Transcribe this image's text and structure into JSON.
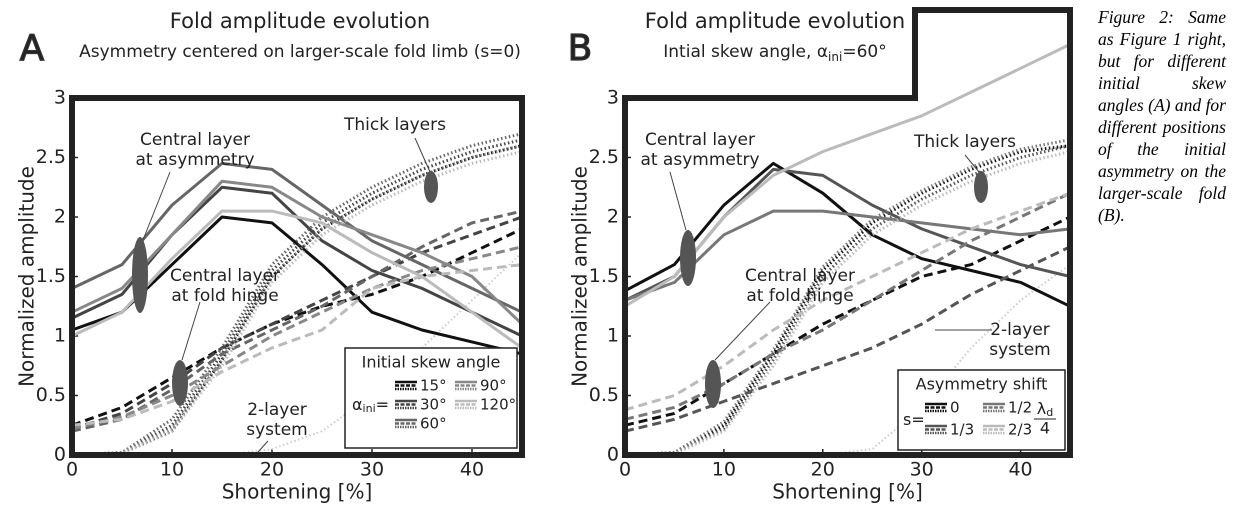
{
  "chart_data": [
    {
      "type": "line",
      "panel": "A",
      "title": "Fold amplitude evolution",
      "subtitle": {
        "text": "Asymmetry centered on larger-scale fold limb (s=0)"
      },
      "xlabel": "Shortening [%]",
      "ylabel": "Normalized amplitude",
      "x": [
        0,
        5,
        10,
        15,
        20,
        25,
        30,
        35,
        40,
        45
      ],
      "xlim": [
        0,
        45
      ],
      "ylim": [
        0,
        3
      ],
      "xticks": [
        0,
        10,
        20,
        30,
        40
      ],
      "yticks": [
        0,
        0.5,
        1,
        1.5,
        2,
        2.5,
        3
      ],
      "legend": {
        "title": "Initial skew angle",
        "symbol": "α",
        "sub": "ini",
        "eq": "="
      },
      "series": [
        {
          "name": "15°",
          "color": "#111111",
          "lines": {
            "solid": [
              1.05,
              1.2,
              1.6,
              2.0,
              1.95,
              1.6,
              1.2,
              1.05,
              0.95,
              0.85
            ],
            "dashed": [
              0.25,
              0.4,
              0.65,
              0.9,
              1.1,
              1.25,
              1.35,
              1.5,
              1.7,
              1.9
            ],
            "dotted": [
              0,
              0.02,
              0.2,
              0.8,
              1.5,
              1.9,
              2.15,
              2.35,
              2.5,
              2.6
            ]
          }
        },
        {
          "name": "30°",
          "color": "#444444",
          "lines": {
            "solid": [
              1.15,
              1.35,
              1.85,
              2.25,
              2.2,
              1.8,
              1.55,
              1.4,
              1.2,
              1.0
            ],
            "dashed": [
              0.22,
              0.35,
              0.6,
              0.9,
              1.1,
              1.3,
              1.5,
              1.7,
              1.85,
              2.0
            ],
            "dotted": [
              0,
              0.02,
              0.25,
              0.85,
              1.55,
              1.95,
              2.2,
              2.4,
              2.55,
              2.65
            ]
          }
        },
        {
          "name": "60°",
          "color": "#666666",
          "lines": {
            "solid": [
              1.4,
              1.6,
              2.1,
              2.45,
              2.4,
              2.1,
              1.8,
              1.6,
              1.4,
              1.2
            ],
            "dashed": [
              0.2,
              0.3,
              0.55,
              0.85,
              1.05,
              1.25,
              1.5,
              1.75,
              1.95,
              2.05
            ],
            "dotted": [
              0,
              0.02,
              0.3,
              0.9,
              1.6,
              2.0,
              2.25,
              2.45,
              2.6,
              2.7
            ]
          }
        },
        {
          "name": "90°",
          "color": "#888888",
          "lines": {
            "solid": [
              1.2,
              1.4,
              1.85,
              2.3,
              2.25,
              2.0,
              1.85,
              1.7,
              1.5,
              1.1
            ],
            "dashed": [
              0.22,
              0.32,
              0.5,
              0.75,
              1.0,
              1.2,
              1.4,
              1.55,
              1.65,
              1.75
            ],
            "dotted": [
              0,
              0.02,
              0.22,
              0.8,
              1.5,
              1.9,
              2.15,
              2.35,
              2.5,
              2.6
            ]
          }
        },
        {
          "name": "120°",
          "color": "#bbbbbb",
          "lines": {
            "solid": [
              1.0,
              1.2,
              1.65,
              2.05,
              2.05,
              1.95,
              1.7,
              1.5,
              1.2,
              0.9
            ],
            "dashed": [
              0.25,
              0.3,
              0.45,
              0.7,
              0.9,
              1.05,
              1.4,
              1.5,
              1.55,
              1.6
            ],
            "dotted": [
              0,
              0.01,
              0.2,
              0.75,
              1.45,
              1.85,
              2.1,
              2.3,
              2.45,
              2.55
            ]
          }
        }
      ],
      "two_layer": {
        "color": "#cccccc",
        "values": [
          0,
          0,
          0,
          0,
          0.05,
          0.2,
          0.5,
          0.9,
          1.3,
          1.7
        ]
      },
      "annotations": [
        {
          "lines": [
            "Central layer",
            "at asymmetry"
          ]
        },
        {
          "lines": [
            "Thick layers"
          ]
        },
        {
          "lines": [
            "Central layer",
            "at fold hinge"
          ]
        },
        {
          "lines": [
            "2-layer",
            "system"
          ]
        }
      ]
    },
    {
      "type": "line",
      "panel": "B",
      "title": "Fold amplitude evolution",
      "subtitle": {
        "text": "Intial skew angle, ",
        "symbol": "α",
        "sub": "ini",
        "rest": "=60°"
      },
      "xlabel": "Shortening [%]",
      "ylabel": "Normalized amplitude",
      "x": [
        0,
        5,
        10,
        15,
        20,
        25,
        30,
        35,
        40,
        45
      ],
      "xlim": [
        0,
        45
      ],
      "ylim": [
        0,
        3
      ],
      "xticks": [
        0,
        10,
        20,
        30,
        40
      ],
      "yticks": [
        0,
        0.5,
        1,
        1.5,
        2,
        2.5,
        3
      ],
      "legend": {
        "title": "Asymmetry shift",
        "symbol": "s",
        "eq": "=",
        "note": {
          "num": "λ",
          "sub": "d",
          "den": "4"
        }
      },
      "series": [
        {
          "name": "0",
          "color": "#111111",
          "lines": {
            "solid": [
              1.38,
              1.6,
              2.1,
              2.45,
              2.2,
              1.85,
              1.65,
              1.55,
              1.45,
              1.25
            ],
            "dashed": [
              0.25,
              0.35,
              0.6,
              0.85,
              1.1,
              1.3,
              1.5,
              1.6,
              1.8,
              2.0
            ],
            "dotted": [
              0,
              0.02,
              0.25,
              0.85,
              1.55,
              1.95,
              2.2,
              2.4,
              2.55,
              2.6
            ]
          }
        },
        {
          "name": "1/3",
          "color": "#555555",
          "lines": {
            "solid": [
              1.3,
              1.5,
              2.0,
              2.4,
              2.35,
              2.1,
              1.9,
              1.75,
              1.6,
              1.5
            ],
            "dashed": [
              0.2,
              0.3,
              0.45,
              0.6,
              0.75,
              0.9,
              1.1,
              1.35,
              1.55,
              1.75
            ],
            "dotted": [
              0,
              0.02,
              0.22,
              0.8,
              1.5,
              1.9,
              2.15,
              2.35,
              2.5,
              2.6
            ]
          }
        },
        {
          "name": "1/2",
          "color": "#777777",
          "lines": {
            "solid": [
              1.3,
              1.45,
              1.85,
              2.05,
              2.05,
              2.0,
              1.95,
              1.9,
              1.85,
              1.9
            ],
            "dashed": [
              0.3,
              0.4,
              0.6,
              0.85,
              1.05,
              1.3,
              1.55,
              1.8,
              2.0,
              2.2
            ],
            "dotted": [
              0,
              0.02,
              0.28,
              0.88,
              1.58,
              1.98,
              2.22,
              2.42,
              2.57,
              2.65
            ]
          }
        },
        {
          "name": "2/3",
          "color": "#bbbbbb",
          "lines": {
            "solid": [
              1.25,
              1.5,
              2.0,
              2.35,
              2.55,
              2.7,
              2.85,
              3.05,
              3.25,
              3.45
            ],
            "dashed": [
              0.38,
              0.5,
              0.75,
              1.05,
              1.3,
              1.5,
              1.7,
              1.9,
              2.05,
              2.2
            ],
            "dotted": [
              0,
              0.01,
              0.2,
              0.75,
              1.45,
              1.85,
              2.1,
              2.3,
              2.45,
              2.55
            ]
          }
        }
      ],
      "two_layer": {
        "color": "#cccccc",
        "values": [
          0,
          0,
          0,
          0,
          0,
          0.05,
          0.4,
          0.9,
          1.3,
          1.6
        ]
      },
      "annotations": [
        {
          "lines": [
            "Central layer",
            "at asymmetry"
          ]
        },
        {
          "lines": [
            "Thick layers"
          ]
        },
        {
          "lines": [
            "Central layer",
            "at fold hinge"
          ]
        },
        {
          "lines": [
            "2-layer",
            "system"
          ]
        }
      ]
    }
  ],
  "caption": "Figure 2: Same as Figure 1 right, but for different initial skew angles (A) and for different positions of the initial asymmetry on the larger-scale fold (B)."
}
